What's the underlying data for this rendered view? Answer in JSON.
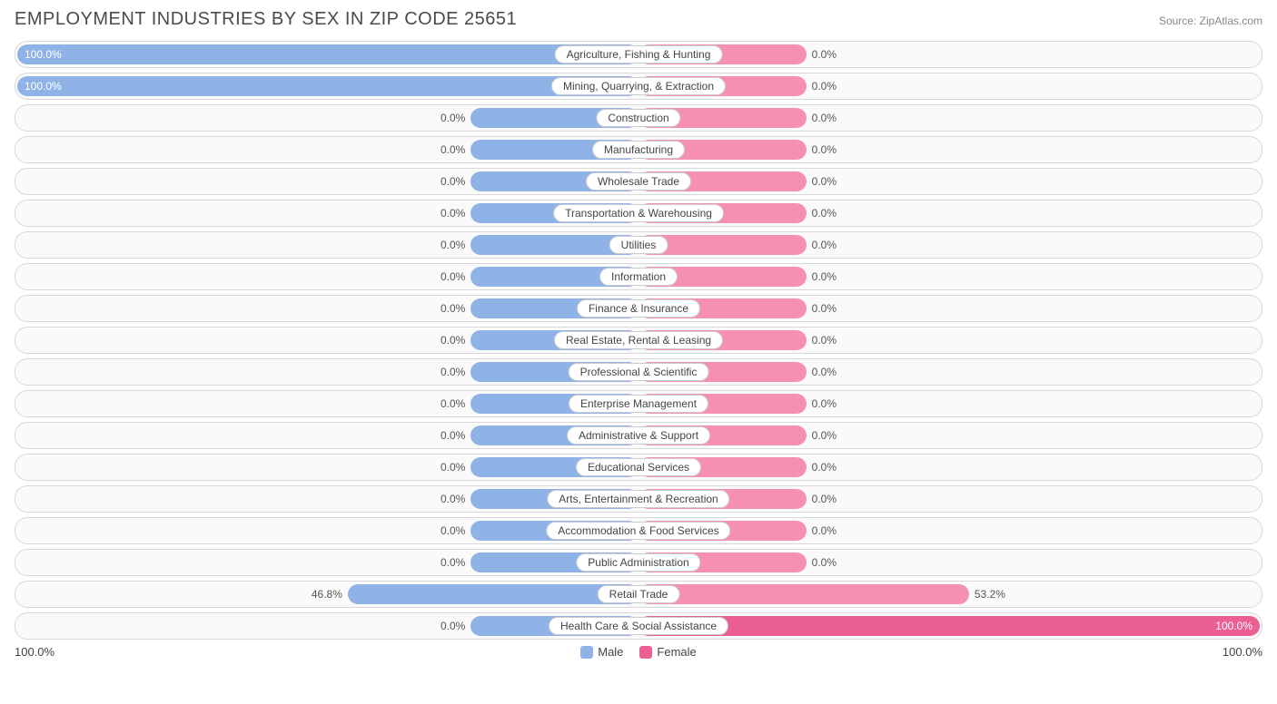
{
  "title": "EMPLOYMENT INDUSTRIES BY SEX IN ZIP CODE 25651",
  "source": "Source: ZipAtlas.com",
  "colors": {
    "male": "#8fb3e6",
    "female": "#f590b2",
    "female_strong": "#ec5f93",
    "row_border": "#d8d8d8",
    "row_bg": "#fafafa",
    "text": "#4a4a4a",
    "pct_text": "#555555",
    "pct_in_text": "#ffffff"
  },
  "axis": {
    "left_label": "100.0%",
    "right_label": "100.0%"
  },
  "legend": [
    {
      "label": "Male",
      "color": "#8fb3e6"
    },
    {
      "label": "Female",
      "color": "#ec5f93"
    }
  ],
  "default_bar_percent": 27,
  "rows": [
    {
      "label": "Agriculture, Fishing & Hunting",
      "male_pct": 100.0,
      "female_pct": 0.0,
      "male_label": "100.0%",
      "female_label": "0.0%"
    },
    {
      "label": "Mining, Quarrying, & Extraction",
      "male_pct": 100.0,
      "female_pct": 0.0,
      "male_label": "100.0%",
      "female_label": "0.0%"
    },
    {
      "label": "Construction",
      "male_pct": 0.0,
      "female_pct": 0.0,
      "male_label": "0.0%",
      "female_label": "0.0%"
    },
    {
      "label": "Manufacturing",
      "male_pct": 0.0,
      "female_pct": 0.0,
      "male_label": "0.0%",
      "female_label": "0.0%"
    },
    {
      "label": "Wholesale Trade",
      "male_pct": 0.0,
      "female_pct": 0.0,
      "male_label": "0.0%",
      "female_label": "0.0%"
    },
    {
      "label": "Transportation & Warehousing",
      "male_pct": 0.0,
      "female_pct": 0.0,
      "male_label": "0.0%",
      "female_label": "0.0%"
    },
    {
      "label": "Utilities",
      "male_pct": 0.0,
      "female_pct": 0.0,
      "male_label": "0.0%",
      "female_label": "0.0%"
    },
    {
      "label": "Information",
      "male_pct": 0.0,
      "female_pct": 0.0,
      "male_label": "0.0%",
      "female_label": "0.0%"
    },
    {
      "label": "Finance & Insurance",
      "male_pct": 0.0,
      "female_pct": 0.0,
      "male_label": "0.0%",
      "female_label": "0.0%"
    },
    {
      "label": "Real Estate, Rental & Leasing",
      "male_pct": 0.0,
      "female_pct": 0.0,
      "male_label": "0.0%",
      "female_label": "0.0%"
    },
    {
      "label": "Professional & Scientific",
      "male_pct": 0.0,
      "female_pct": 0.0,
      "male_label": "0.0%",
      "female_label": "0.0%"
    },
    {
      "label": "Enterprise Management",
      "male_pct": 0.0,
      "female_pct": 0.0,
      "male_label": "0.0%",
      "female_label": "0.0%"
    },
    {
      "label": "Administrative & Support",
      "male_pct": 0.0,
      "female_pct": 0.0,
      "male_label": "0.0%",
      "female_label": "0.0%"
    },
    {
      "label": "Educational Services",
      "male_pct": 0.0,
      "female_pct": 0.0,
      "male_label": "0.0%",
      "female_label": "0.0%"
    },
    {
      "label": "Arts, Entertainment & Recreation",
      "male_pct": 0.0,
      "female_pct": 0.0,
      "male_label": "0.0%",
      "female_label": "0.0%"
    },
    {
      "label": "Accommodation & Food Services",
      "male_pct": 0.0,
      "female_pct": 0.0,
      "male_label": "0.0%",
      "female_label": "0.0%"
    },
    {
      "label": "Public Administration",
      "male_pct": 0.0,
      "female_pct": 0.0,
      "male_label": "0.0%",
      "female_label": "0.0%"
    },
    {
      "label": "Retail Trade",
      "male_pct": 46.8,
      "female_pct": 53.2,
      "male_label": "46.8%",
      "female_label": "53.2%"
    },
    {
      "label": "Health Care & Social Assistance",
      "male_pct": 0.0,
      "female_pct": 100.0,
      "male_label": "0.0%",
      "female_label": "100.0%"
    }
  ]
}
